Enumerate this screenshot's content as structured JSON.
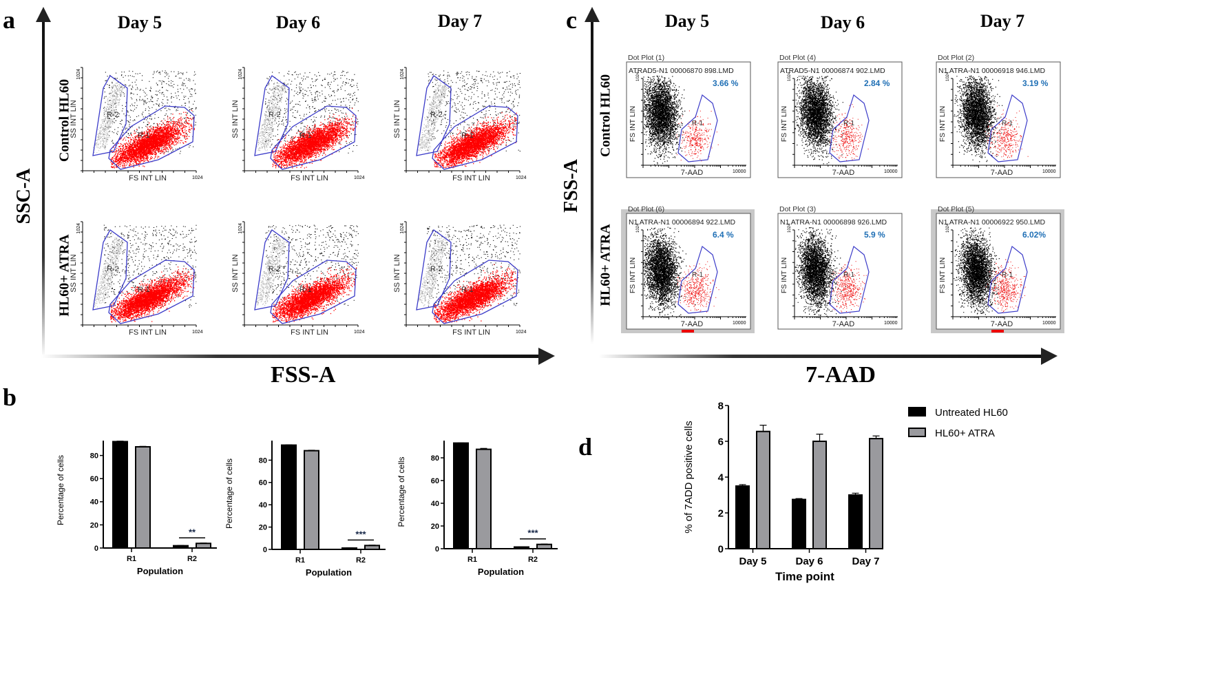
{
  "figure": {
    "panel_letters": [
      "a",
      "b",
      "c",
      "d"
    ],
    "day_titles": [
      "Day 5",
      "Day 6",
      "Day 7"
    ],
    "row_labels": [
      "Control HL60",
      "HL60+ ATRA"
    ],
    "panel_a": {
      "x_axis_label": "FSS-A",
      "y_axis_label": "SSC-A",
      "plot_x_label": "FS INT LIN",
      "plot_y_label": "SS INT LIN",
      "axis_max_label": "1024",
      "gate_labels": [
        "R-1",
        "R-2"
      ],
      "colors": {
        "r1": "#ff0000",
        "r2": "#b0b0b0",
        "gate": "#3a3ac8",
        "events": "#000000"
      }
    },
    "panel_c": {
      "x_axis_label": "7-AAD",
      "y_axis_label": "FSS-A",
      "plot_x_label": "7-AAD",
      "plot_y_label": "FS INT LIN",
      "axis_max_label": "10000",
      "y_axis_max_label": "1024",
      "gate_label": "R-1",
      "percent_color": "#1f6fb5",
      "plots": [
        {
          "row": 0,
          "col": 0,
          "title": "Dot Plot (1)",
          "file": "ATRAD5-N1 00006870 898.LMD",
          "percent": "3.66 %"
        },
        {
          "row": 0,
          "col": 1,
          "title": "Dot Plot (4)",
          "file": "ATRAD5-N1 00006874 902.LMD",
          "percent": "2.84 %"
        },
        {
          "row": 0,
          "col": 2,
          "title": "Dot Plot (2)",
          "file": "N1 ATRA-N1 00006918 946.LMD",
          "percent": "3.19 %"
        },
        {
          "row": 1,
          "col": 0,
          "title": "Dot Plot (6)",
          "file": "N1 ATRA-N1 00006894 922.LMD",
          "percent": "6.4 %"
        },
        {
          "row": 1,
          "col": 1,
          "title": "Dot Plot (3)",
          "file": "N1 ATRA-N1 00006898 926.LMD",
          "percent": "5.9 %"
        },
        {
          "row": 1,
          "col": 2,
          "title": "Dot Plot (5)",
          "file": "N1 ATRA-N1 00006922 950.LMD",
          "percent": "6.02%"
        }
      ]
    }
  },
  "chart_data": [
    {
      "id": "b1",
      "type": "bar",
      "title": "",
      "xlabel": "Population",
      "ylabel": "Percentage of cells",
      "categories": [
        "R1",
        "R2"
      ],
      "ylim": [
        0,
        100
      ],
      "yticks": [
        0,
        20,
        40,
        60,
        80,
        100
      ],
      "series": [
        {
          "name": "Untreated HL60",
          "color": "#000000",
          "values": [
            92,
            2
          ],
          "errors": [
            0.4,
            0.2
          ]
        },
        {
          "name": "HL60+ ATRA",
          "color": "#9a9a9e",
          "values": [
            87.5,
            4
          ],
          "errors": [
            0.4,
            0.3
          ]
        }
      ],
      "significance": [
        "**",
        "**"
      ]
    },
    {
      "id": "b2",
      "type": "bar",
      "title": "",
      "xlabel": "Population",
      "ylabel": "Percentage of cells",
      "categories": [
        "R1",
        "R2"
      ],
      "ylim": [
        0,
        100
      ],
      "yticks": [
        0,
        20,
        40,
        60,
        80,
        100
      ],
      "series": [
        {
          "name": "Untreated HL60",
          "color": "#000000",
          "values": [
            93.5,
            1.2
          ],
          "errors": [
            0.3,
            0.2
          ]
        },
        {
          "name": "HL60+ ATRA",
          "color": "#9a9a9e",
          "values": [
            88.5,
            3.5
          ],
          "errors": [
            0.4,
            0.3
          ]
        }
      ],
      "significance": [
        "***",
        "***"
      ]
    },
    {
      "id": "b3",
      "type": "bar",
      "title": "",
      "xlabel": "Population",
      "ylabel": "Percentage of cells",
      "categories": [
        "R1",
        "R2"
      ],
      "ylim": [
        0,
        100
      ],
      "yticks": [
        0,
        20,
        40,
        60,
        80,
        100
      ],
      "series": [
        {
          "name": "Untreated HL60",
          "color": "#000000",
          "values": [
            93,
            1.5
          ],
          "errors": [
            0.2,
            0.2
          ]
        },
        {
          "name": "HL60+ ATRA",
          "color": "#9a9a9e",
          "values": [
            87.5,
            3.8
          ],
          "errors": [
            0.8,
            0.3
          ]
        }
      ],
      "significance": [
        "**",
        "***"
      ]
    },
    {
      "id": "d",
      "type": "bar",
      "title": "",
      "xlabel": "Time point",
      "ylabel": "% of 7ADD positive cells",
      "categories": [
        "Day 5",
        "Day 6",
        "Day 7"
      ],
      "ylim": [
        0,
        8
      ],
      "yticks": [
        0,
        2,
        4,
        6,
        8
      ],
      "legend": "top-right",
      "series": [
        {
          "name": "Untreated HL60",
          "color": "#000000",
          "values": [
            3.5,
            2.75,
            3.0
          ],
          "errors": [
            0.08,
            0.05,
            0.1
          ]
        },
        {
          "name": "HL60+ ATRA",
          "color": "#9a9a9e",
          "values": [
            6.55,
            6.0,
            6.15
          ],
          "errors": [
            0.35,
            0.4,
            0.15
          ]
        }
      ]
    }
  ]
}
